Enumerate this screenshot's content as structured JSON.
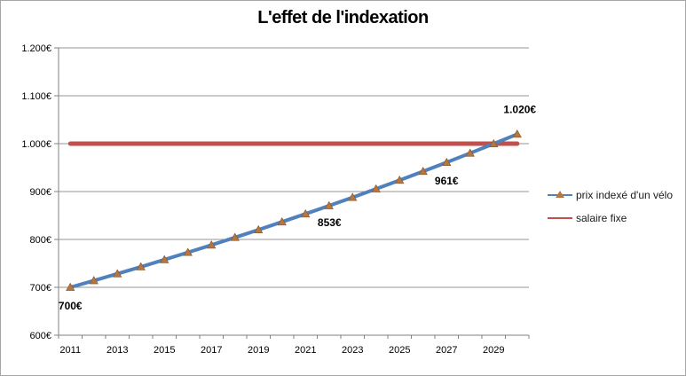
{
  "chart_data": {
    "type": "line",
    "title": "L'effet de l'indexation",
    "x": [
      2011,
      2012,
      2013,
      2014,
      2015,
      2016,
      2017,
      2018,
      2019,
      2020,
      2021,
      2022,
      2023,
      2024,
      2025,
      2026,
      2027,
      2028,
      2029,
      2030
    ],
    "x_tick_labels": [
      "2011",
      "2013",
      "2015",
      "2017",
      "2019",
      "2021",
      "2023",
      "2025",
      "2027",
      "2029"
    ],
    "y_ticks": [
      600,
      700,
      800,
      900,
      1000,
      1100,
      1200
    ],
    "y_tick_labels": [
      "600€",
      "700€",
      "800€",
      "900€",
      "1.000€",
      "1.100€",
      "1.200€"
    ],
    "ylim": [
      600,
      1200
    ],
    "grid": "horizontal",
    "legend_position": "right",
    "series": [
      {
        "name": "prix indexé d'un vélo",
        "color": "#4f81bd",
        "line_width": 4,
        "marker": "triangle",
        "marker_color": "#b5773f",
        "marker_edge": "#8f5b2f",
        "values": [
          700.0,
          714.0,
          728.3,
          742.8,
          757.7,
          772.9,
          788.3,
          804.1,
          820.2,
          836.6,
          853.3,
          870.4,
          887.8,
          905.5,
          923.7,
          942.1,
          960.9,
          980.2,
          999.8,
          1019.8
        ]
      },
      {
        "name": "salaire fixe",
        "color": "#c0504d",
        "line_width": 5,
        "marker": "none",
        "values": [
          1000,
          1000,
          1000,
          1000,
          1000,
          1000,
          1000,
          1000,
          1000,
          1000,
          1000,
          1000,
          1000,
          1000,
          1000,
          1000,
          1000,
          1000,
          1000,
          1000
        ]
      }
    ],
    "data_labels": [
      {
        "year": 2011,
        "text": "700€",
        "position": "below"
      },
      {
        "year": 2021,
        "text": "853€",
        "position": "below-right"
      },
      {
        "year": 2027,
        "text": "961€",
        "position": "below"
      },
      {
        "year": 2030,
        "text": "1.020€",
        "position": "above"
      }
    ],
    "colors": {
      "grid": "#969696",
      "axis": "#808080",
      "text": "#000000"
    }
  }
}
